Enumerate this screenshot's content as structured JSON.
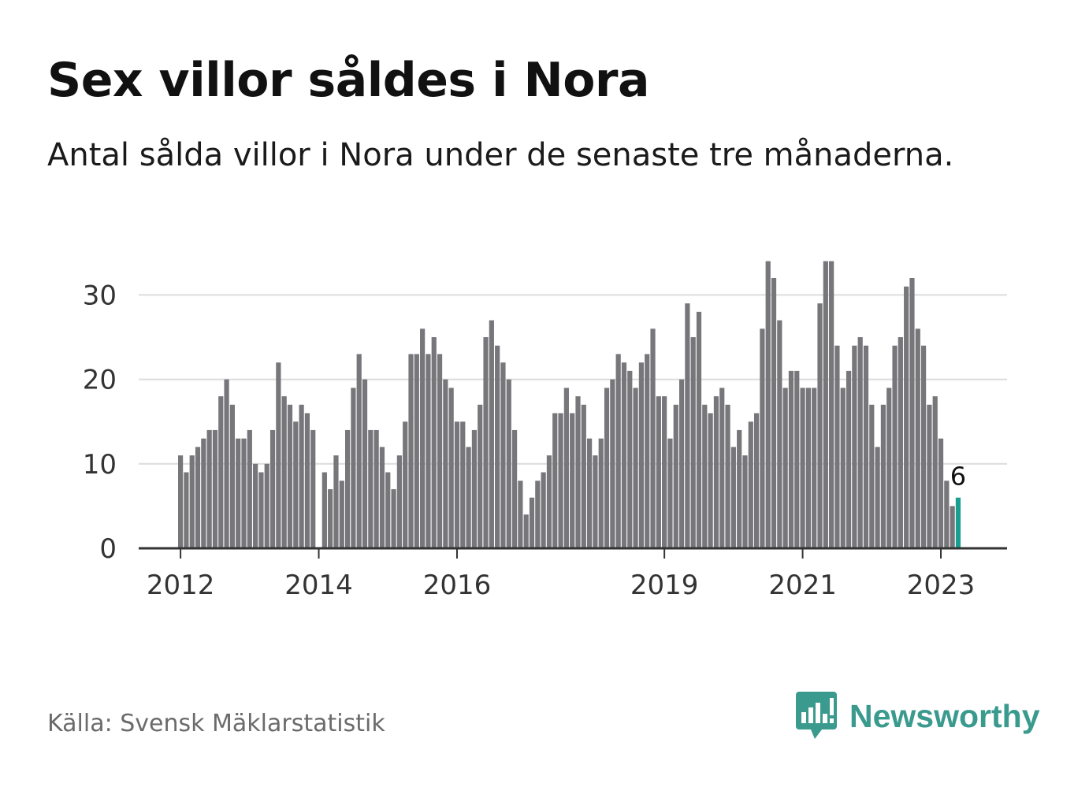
{
  "title": "Sex villor såldes i Nora",
  "subtitle": "Antal sålda villor i Nora under de senaste tre månaderna.",
  "source": "Källa: Svensk Mäklarstatistik",
  "brand": {
    "name": "Newsworthy",
    "icon": "newsworthy-logo-icon",
    "color": "#3a9a8e"
  },
  "chart_data": {
    "type": "bar",
    "title": "Sex villor såldes i Nora",
    "subtitle": "Antal sålda villor i Nora under de senaste tre månaderna.",
    "x_ticks": [
      "2012",
      "2014",
      "2016",
      "2019",
      "2021",
      "2023"
    ],
    "y_ticks": [
      "0",
      "10",
      "20",
      "30"
    ],
    "ylim": [
      0,
      34
    ],
    "grid": true,
    "bar_color": "#76767b",
    "highlight_color": "#1a9e91",
    "highlight_last": true,
    "last_value_label": "6",
    "values": [
      11,
      9,
      11,
      12,
      13,
      14,
      14,
      18,
      20,
      17,
      13,
      13,
      14,
      10,
      9,
      10,
      14,
      22,
      18,
      17,
      15,
      17,
      16,
      14,
      0,
      9,
      7,
      11,
      8,
      14,
      19,
      23,
      20,
      14,
      14,
      12,
      9,
      7,
      11,
      15,
      23,
      23,
      26,
      23,
      25,
      23,
      20,
      19,
      15,
      15,
      12,
      14,
      17,
      25,
      27,
      24,
      22,
      20,
      14,
      8,
      4,
      6,
      8,
      9,
      11,
      16,
      16,
      19,
      16,
      18,
      17,
      13,
      11,
      13,
      19,
      20,
      23,
      22,
      21,
      19,
      22,
      23,
      26,
      18,
      18,
      13,
      17,
      20,
      29,
      25,
      28,
      17,
      16,
      18,
      19,
      17,
      12,
      14,
      11,
      15,
      16,
      26,
      34,
      32,
      27,
      19,
      21,
      21,
      19,
      19,
      19,
      29,
      34,
      34,
      24,
      19,
      21,
      24,
      25,
      24,
      17,
      12,
      17,
      19,
      24,
      25,
      31,
      32,
      26,
      24,
      17,
      18,
      13,
      8,
      5,
      6
    ]
  }
}
